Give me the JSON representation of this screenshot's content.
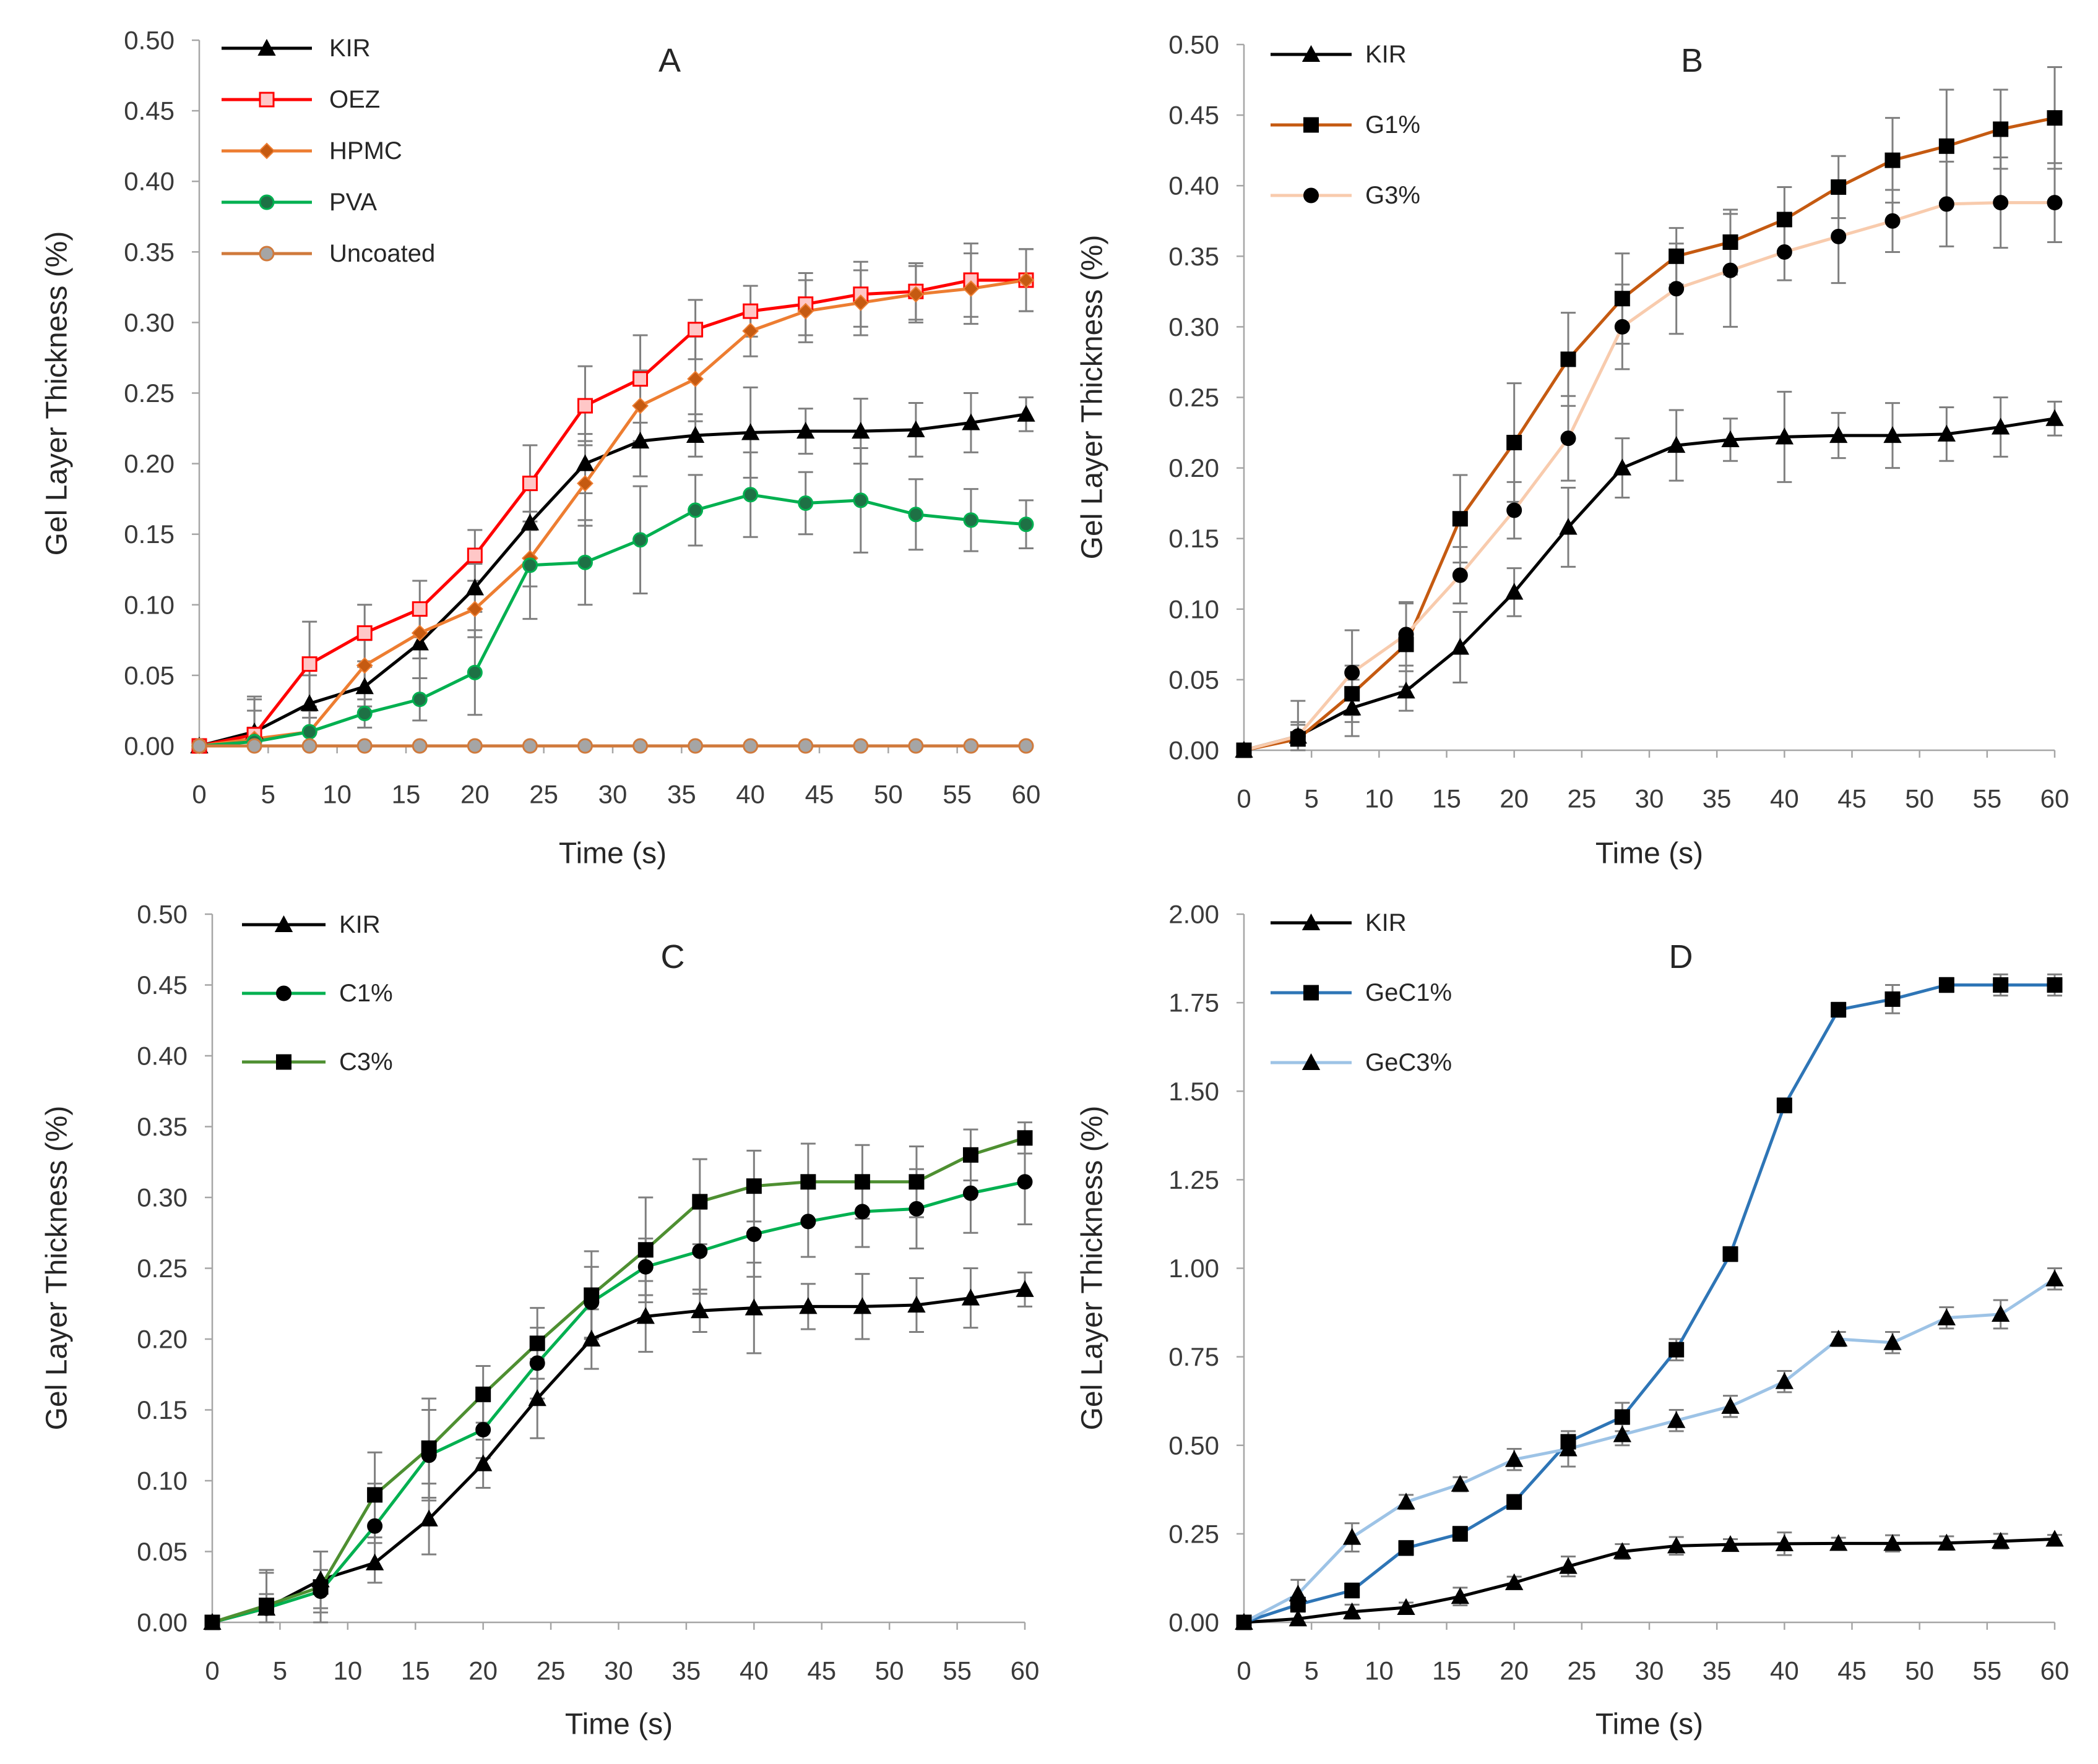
{
  "style": {
    "background": "#ffffff",
    "axis_color": "#a6a6a6",
    "error_bar_color": "#7f7f7f"
  },
  "chart_data": [
    {
      "type": "line",
      "title": "A",
      "xlabel": "Time (s)",
      "ylabel": "Gel Layer Thickness (%)",
      "x": [
        0,
        4,
        8,
        12,
        16,
        20,
        24,
        28,
        32,
        36,
        40,
        44,
        48,
        52,
        56,
        60
      ],
      "xlim": [
        0,
        60
      ],
      "ylim": [
        0,
        0.5
      ],
      "xticks": [
        0,
        5,
        10,
        15,
        20,
        25,
        30,
        35,
        40,
        45,
        50,
        55,
        60
      ],
      "xtick_labels": [
        "0",
        "5",
        "10",
        "15",
        "20",
        "25",
        "30",
        "35",
        "40",
        "45",
        "50",
        "55",
        "60"
      ],
      "yticks": [
        0,
        0.05,
        0.1,
        0.15,
        0.2,
        0.25,
        0.3,
        0.35,
        0.4,
        0.45,
        0.5
      ],
      "ytick_labels": [
        "0.00",
        "0.05",
        "0.10",
        "0.15",
        "0.20",
        "0.25",
        "0.30",
        "0.35",
        "0.40",
        "0.45",
        "0.50"
      ],
      "grid": false,
      "legend_position": "top-left",
      "series": [
        {
          "name": "KIR",
          "values": [
            0,
            0.01,
            0.03,
            0.042,
            0.073,
            0.112,
            0.158,
            0.2,
            0.216,
            0.22,
            0.222,
            0.223,
            0.223,
            0.224,
            0.229,
            0.235
          ],
          "error_bars": [
            0,
            0.025,
            0.02,
            0.014,
            0.025,
            0.017,
            0.028,
            0.021,
            0.025,
            0.015,
            0.032,
            0.016,
            0.023,
            0.019,
            0.021,
            0.012
          ],
          "line_color": "#000000",
          "marker_icon": "triangle-icon",
          "marker_fill": "#000000",
          "marker_stroke": "#000000"
        },
        {
          "name": "OEZ",
          "values": [
            0,
            0.008,
            0.058,
            0.08,
            0.097,
            0.135,
            0.186,
            0.241,
            0.26,
            0.295,
            0.308,
            0.313,
            0.32,
            0.322,
            0.33,
            0.33
          ],
          "error_bars": [
            0,
            0.025,
            0.03,
            0.02,
            0.02,
            0.018,
            0.027,
            0.028,
            0.031,
            0.021,
            0.018,
            0.022,
            0.023,
            0.02,
            0.026,
            0.022
          ],
          "line_color": "#ff0000",
          "marker_icon": "square-icon",
          "marker_fill": "#ffc7c7",
          "marker_stroke": "#ff0000"
        },
        {
          "name": "HPMC",
          "values": [
            0,
            0.005,
            0.01,
            0.057,
            0.08,
            0.097,
            0.133,
            0.186,
            0.241,
            0.26,
            0.294,
            0.308,
            0.314,
            0.32,
            0.324,
            0.33
          ],
          "error_bars": [
            0,
            0.02,
            0.015,
            0.018,
            0.018,
            0.02,
            0.02,
            0.03,
            0.025,
            0.03,
            0.018,
            0.022,
            0.023,
            0.02,
            0.025,
            0.022
          ],
          "line_color": "#ed7d31",
          "marker_icon": "diamond-icon",
          "marker_fill": "#c55a11",
          "marker_stroke": "#ed7d31"
        },
        {
          "name": "PVA",
          "values": [
            0,
            0.003,
            0.01,
            0.023,
            0.033,
            0.052,
            0.128,
            0.13,
            0.146,
            0.167,
            0.178,
            0.172,
            0.174,
            0.164,
            0.16,
            0.157
          ],
          "error_bars": [
            0,
            0.01,
            0.01,
            0.01,
            0.015,
            0.03,
            0.038,
            0.03,
            0.038,
            0.025,
            0.03,
            0.022,
            0.037,
            0.025,
            0.022,
            0.017
          ],
          "line_color": "#00b050",
          "marker_icon": "circle-icon",
          "marker_fill": "#1e7145",
          "marker_stroke": "#00b050"
        },
        {
          "name": "Uncoated",
          "values": [
            0,
            0,
            0,
            0,
            0,
            0,
            0,
            0,
            0,
            0,
            0,
            0,
            0,
            0,
            0,
            0
          ],
          "error_bars": [
            0,
            0,
            0,
            0,
            0,
            0,
            0,
            0,
            0,
            0,
            0,
            0,
            0,
            0,
            0,
            0
          ],
          "line_color": "#d07a3c",
          "marker_icon": "circle-icon",
          "marker_fill": "#a5a5a5",
          "marker_stroke": "#d07a3c"
        }
      ]
    },
    {
      "type": "line",
      "title": "B",
      "xlabel": "Time (s)",
      "ylabel": "Gel Layer Thickness (%)",
      "x": [
        0,
        4,
        8,
        12,
        16,
        20,
        24,
        28,
        32,
        36,
        40,
        44,
        48,
        52,
        56,
        60
      ],
      "xlim": [
        0,
        60
      ],
      "ylim": [
        0,
        0.5
      ],
      "xticks": [
        0,
        5,
        10,
        15,
        20,
        25,
        30,
        35,
        40,
        45,
        50,
        55,
        60
      ],
      "xtick_labels": [
        "0",
        "5",
        "10",
        "15",
        "20",
        "25",
        "30",
        "35",
        "40",
        "45",
        "50",
        "55",
        "60"
      ],
      "yticks": [
        0,
        0.05,
        0.1,
        0.15,
        0.2,
        0.25,
        0.3,
        0.35,
        0.4,
        0.45,
        0.5
      ],
      "ytick_labels": [
        "0.00",
        "0.05",
        "0.10",
        "0.15",
        "0.20",
        "0.25",
        "0.30",
        "0.35",
        "0.40",
        "0.45",
        "0.50"
      ],
      "grid": false,
      "legend_position": "top-left",
      "series": [
        {
          "name": "KIR",
          "values": [
            0,
            0.01,
            0.03,
            0.042,
            0.073,
            0.112,
            0.158,
            0.2,
            0.216,
            0.22,
            0.222,
            0.223,
            0.223,
            0.224,
            0.229,
            0.235
          ],
          "error_bars": [
            0,
            0.025,
            0.02,
            0.014,
            0.025,
            0.017,
            0.028,
            0.021,
            0.025,
            0.015,
            0.032,
            0.016,
            0.023,
            0.019,
            0.021,
            0.012
          ],
          "line_color": "#000000",
          "marker_icon": "triangle-icon",
          "marker_fill": "#000000",
          "marker_stroke": "#000000"
        },
        {
          "name": "G1%",
          "values": [
            0,
            0.008,
            0.04,
            0.075,
            0.164,
            0.218,
            0.277,
            0.32,
            0.35,
            0.36,
            0.376,
            0.399,
            0.418,
            0.428,
            0.44,
            0.448
          ],
          "error_bars": [
            0,
            0.01,
            0.02,
            0.03,
            0.031,
            0.042,
            0.033,
            0.032,
            0.02,
            0.023,
            0.023,
            0.022,
            0.03,
            0.04,
            0.028,
            0.036
          ],
          "line_color": "#c55a11",
          "marker_icon": "square-icon",
          "marker_fill": "#000000",
          "marker_stroke": "#000000"
        },
        {
          "name": "G3%",
          "values": [
            0,
            0.01,
            0.055,
            0.082,
            0.124,
            0.17,
            0.221,
            0.3,
            0.327,
            0.34,
            0.353,
            0.364,
            0.375,
            0.387,
            0.388,
            0.388
          ],
          "error_bars": [
            0,
            0.01,
            0.03,
            0.022,
            0.02,
            0.02,
            0.03,
            0.03,
            0.032,
            0.04,
            0.02,
            0.033,
            0.022,
            0.03,
            0.032,
            0.028
          ],
          "line_color": "#f8cbad",
          "marker_icon": "circle-icon",
          "marker_fill": "#000000",
          "marker_stroke": "#000000"
        }
      ]
    },
    {
      "type": "line",
      "title": "C",
      "xlabel": "Time (s)",
      "ylabel": "Gel Layer Thickness (%)",
      "x": [
        0,
        4,
        8,
        12,
        16,
        20,
        24,
        28,
        32,
        36,
        40,
        44,
        48,
        52,
        56,
        60
      ],
      "xlim": [
        0,
        60
      ],
      "ylim": [
        0,
        0.5
      ],
      "xticks": [
        0,
        5,
        10,
        15,
        20,
        25,
        30,
        35,
        40,
        45,
        50,
        55,
        60
      ],
      "xtick_labels": [
        "0",
        "5",
        "10",
        "15",
        "20",
        "25",
        "30",
        "35",
        "40",
        "45",
        "50",
        "55",
        "60"
      ],
      "yticks": [
        0,
        0.05,
        0.1,
        0.15,
        0.2,
        0.25,
        0.3,
        0.35,
        0.4,
        0.45,
        0.5
      ],
      "ytick_labels": [
        "0.00",
        "0.05",
        "0.10",
        "0.15",
        "0.20",
        "0.25",
        "0.30",
        "0.35",
        "0.40",
        "0.45",
        "0.50"
      ],
      "grid": false,
      "legend_position": "top-left",
      "series": [
        {
          "name": "KIR",
          "values": [
            0,
            0.01,
            0.03,
            0.042,
            0.073,
            0.112,
            0.158,
            0.2,
            0.216,
            0.22,
            0.222,
            0.223,
            0.223,
            0.224,
            0.229,
            0.235
          ],
          "error_bars": [
            0,
            0.025,
            0.02,
            0.014,
            0.025,
            0.017,
            0.028,
            0.021,
            0.025,
            0.015,
            0.032,
            0.016,
            0.023,
            0.019,
            0.021,
            0.012
          ],
          "line_color": "#000000",
          "marker_icon": "triangle-icon",
          "marker_fill": "#000000",
          "marker_stroke": "#000000"
        },
        {
          "name": "C1%",
          "values": [
            0,
            0.01,
            0.022,
            0.068,
            0.118,
            0.136,
            0.183,
            0.226,
            0.251,
            0.262,
            0.274,
            0.283,
            0.29,
            0.292,
            0.303,
            0.311
          ],
          "error_bars": [
            0,
            0.01,
            0.015,
            0.03,
            0.032,
            0.02,
            0.025,
            0.025,
            0.02,
            0.03,
            0.03,
            0.025,
            0.025,
            0.028,
            0.028,
            0.03
          ],
          "line_color": "#00b050",
          "marker_icon": "circle-icon",
          "marker_fill": "#000000",
          "marker_stroke": "#000000"
        },
        {
          "name": "C3%",
          "values": [
            0,
            0.012,
            0.025,
            0.09,
            0.123,
            0.161,
            0.197,
            0.231,
            0.263,
            0.297,
            0.308,
            0.311,
            0.311,
            0.311,
            0.33,
            0.342
          ],
          "error_bars": [
            0,
            0.025,
            0.025,
            0.03,
            0.035,
            0.02,
            0.025,
            0.031,
            0.037,
            0.03,
            0.025,
            0.027,
            0.026,
            0.025,
            0.018,
            0.011
          ],
          "line_color": "#4e8f31",
          "marker_icon": "square-icon",
          "marker_fill": "#000000",
          "marker_stroke": "#000000"
        }
      ]
    },
    {
      "type": "line",
      "title": "D",
      "xlabel": "Time (s)",
      "ylabel": "Gel Layer Thickness (%)",
      "x": [
        0,
        4,
        8,
        12,
        16,
        20,
        24,
        28,
        32,
        36,
        40,
        44,
        48,
        52,
        56,
        60
      ],
      "xlim": [
        0,
        60
      ],
      "ylim": [
        0,
        2
      ],
      "xticks": [
        0,
        5,
        10,
        15,
        20,
        25,
        30,
        35,
        40,
        45,
        50,
        55,
        60
      ],
      "xtick_labels": [
        "0",
        "5",
        "10",
        "15",
        "20",
        "25",
        "30",
        "35",
        "40",
        "45",
        "50",
        "55",
        "60"
      ],
      "yticks": [
        0,
        0.25,
        0.5,
        0.75,
        1,
        1.25,
        1.5,
        1.75,
        2
      ],
      "ytick_labels": [
        "0.00",
        "0.25",
        "0.50",
        "0.75",
        "1.00",
        "1.25",
        "1.50",
        "1.75",
        "2.00"
      ],
      "grid": false,
      "legend_position": "top-left",
      "series": [
        {
          "name": "KIR",
          "values": [
            0,
            0.01,
            0.03,
            0.042,
            0.073,
            0.112,
            0.158,
            0.2,
            0.216,
            0.22,
            0.222,
            0.223,
            0.223,
            0.224,
            0.229,
            0.235
          ],
          "error_bars": [
            0,
            0.025,
            0.02,
            0.014,
            0.025,
            0.017,
            0.028,
            0.021,
            0.025,
            0.015,
            0.032,
            0.016,
            0.023,
            0.019,
            0.021,
            0.012
          ],
          "line_color": "#000000",
          "marker_icon": "triangle-icon",
          "marker_fill": "#000000",
          "marker_stroke": "#000000"
        },
        {
          "name": "GeC1%",
          "values": [
            0,
            0.05,
            0.09,
            0.21,
            0.25,
            0.34,
            0.51,
            0.58,
            0.77,
            1.04,
            1.46,
            1.73,
            1.76,
            1.8,
            1.8,
            1.8
          ],
          "error_bars": [
            0,
            0.02,
            0.02,
            0.02,
            0.02,
            0.02,
            0.03,
            0.04,
            0.03,
            0.02,
            0.02,
            0.02,
            0.04,
            0.02,
            0.03,
            0.03
          ],
          "line_color": "#2e75b6",
          "marker_icon": "square-icon",
          "marker_fill": "#000000",
          "marker_stroke": "#000000"
        },
        {
          "name": "GeC3%",
          "values": [
            0,
            0.08,
            0.24,
            0.34,
            0.39,
            0.46,
            0.49,
            0.53,
            0.57,
            0.61,
            0.68,
            0.8,
            0.79,
            0.86,
            0.87,
            0.97
          ],
          "error_bars": [
            0,
            0.04,
            0.04,
            0.02,
            0.02,
            0.03,
            0.05,
            0.03,
            0.03,
            0.03,
            0.03,
            0.02,
            0.03,
            0.03,
            0.04,
            0.03
          ],
          "line_color": "#9dc3e6",
          "marker_icon": "triangle-icon",
          "marker_fill": "#000000",
          "marker_stroke": "#000000"
        }
      ]
    }
  ]
}
